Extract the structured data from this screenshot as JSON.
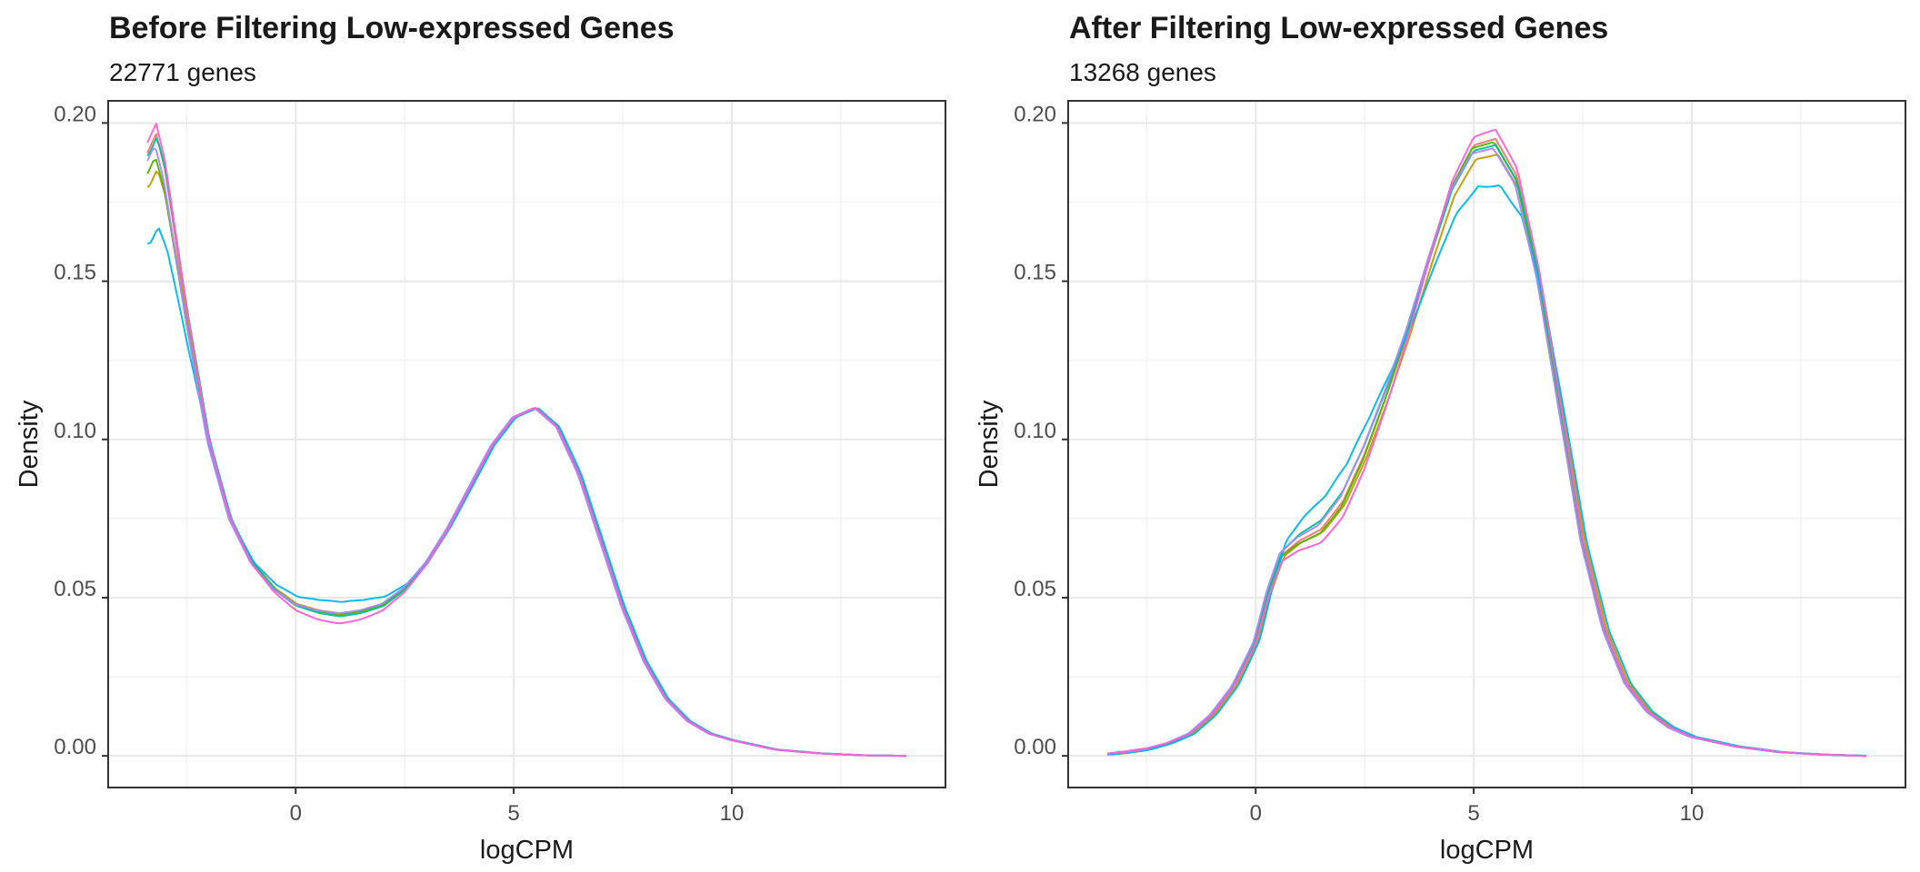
{
  "colors": {
    "grid_major": "#e8e8e8",
    "grid_minor": "#f3f3f3",
    "panel_border": "#333333",
    "series": [
      "#F8766D",
      "#C49A00",
      "#53B400",
      "#00C094",
      "#00B6EB",
      "#A58AFF",
      "#FB61D7"
    ]
  },
  "chart_data": [
    {
      "type": "line",
      "title": "Before Filtering Low-expressed Genes",
      "subtitle": "22771 genes",
      "xlabel": "logCPM",
      "ylabel": "Density",
      "xlim": [
        -4.3,
        14.9
      ],
      "ylim": [
        -0.01,
        0.207
      ],
      "x_ticks": [
        0,
        5,
        10
      ],
      "y_ticks": [
        0.0,
        0.05,
        0.1,
        0.15,
        0.2
      ],
      "x_tick_labels": [
        "0",
        "5",
        "10"
      ],
      "y_tick_labels": [
        "0.00",
        "0.05",
        "0.10",
        "0.15",
        "0.20"
      ],
      "grid": true,
      "legend": "none",
      "curve_shape": {
        "x": [
          -3.4,
          -3.2,
          -3.0,
          -2.5,
          -2.0,
          -1.5,
          -1.0,
          -0.5,
          0.0,
          0.5,
          1.0,
          1.5,
          2.0,
          2.5,
          3.0,
          3.5,
          4.0,
          4.5,
          5.0,
          5.5,
          6.0,
          6.5,
          7.0,
          7.5,
          8.0,
          8.5,
          9.0,
          9.5,
          10.0,
          11.0,
          12.0,
          13.0,
          14.0
        ],
        "y": [
          0.19,
          0.196,
          0.185,
          0.14,
          0.1,
          0.075,
          0.061,
          0.053,
          0.048,
          0.046,
          0.045,
          0.046,
          0.048,
          0.053,
          0.061,
          0.072,
          0.085,
          0.098,
          0.107,
          0.11,
          0.104,
          0.089,
          0.068,
          0.047,
          0.03,
          0.018,
          0.011,
          0.007,
          0.005,
          0.002,
          0.0008,
          0.0002,
          0.0
        ]
      },
      "series": [
        {
          "color": "#F8766D",
          "peak": 1.003,
          "left_edge": 1.0,
          "mid": 1.0,
          "shift": 0.0
        },
        {
          "color": "#C49A00",
          "peak": 0.985,
          "left_edge": 0.96,
          "mid": 1.0,
          "shift": 0.03
        },
        {
          "color": "#53B400",
          "peak": 0.995,
          "left_edge": 0.97,
          "mid": 0.99,
          "shift": -0.02
        },
        {
          "color": "#00C094",
          "peak": 1.008,
          "left_edge": 0.99,
          "mid": 0.98,
          "shift": 0.02
        },
        {
          "color": "#00B6EB",
          "peak": 0.93,
          "left_edge": 0.92,
          "mid": 1.08,
          "shift": 0.05
        },
        {
          "color": "#A58AFF",
          "peak": 0.99,
          "left_edge": 0.995,
          "mid": 1.0,
          "shift": -0.03
        },
        {
          "color": "#FB61D7",
          "peak": 1.01,
          "left_edge": 1.01,
          "mid": 0.93,
          "shift": 0.0
        }
      ]
    },
    {
      "type": "line",
      "title": "After Filtering Low-expressed Genes",
      "subtitle": "13268 genes",
      "xlabel": "logCPM",
      "ylabel": "Density",
      "xlim": [
        -4.3,
        14.9
      ],
      "ylim": [
        -0.01,
        0.207
      ],
      "x_ticks": [
        0,
        5,
        10
      ],
      "y_ticks": [
        0.0,
        0.05,
        0.1,
        0.15,
        0.2
      ],
      "x_tick_labels": [
        "0",
        "5",
        "10"
      ],
      "y_tick_labels": [
        "0.00",
        "0.05",
        "0.10",
        "0.15",
        "0.20"
      ],
      "grid": true,
      "legend": "none",
      "curve_shape": {
        "x": [
          -3.4,
          -3.0,
          -2.5,
          -2.0,
          -1.5,
          -1.0,
          -0.5,
          0.0,
          0.3,
          0.6,
          1.0,
          1.5,
          2.0,
          2.5,
          3.0,
          3.5,
          4.0,
          4.5,
          5.0,
          5.5,
          6.0,
          6.5,
          7.0,
          7.5,
          8.0,
          8.5,
          9.0,
          9.5,
          10.0,
          11.0,
          12.0,
          13.0,
          14.0
        ],
        "y": [
          0.0005,
          0.001,
          0.002,
          0.004,
          0.007,
          0.013,
          0.022,
          0.036,
          0.052,
          0.064,
          0.069,
          0.073,
          0.082,
          0.097,
          0.115,
          0.135,
          0.158,
          0.18,
          0.193,
          0.195,
          0.183,
          0.152,
          0.11,
          0.068,
          0.04,
          0.023,
          0.014,
          0.009,
          0.006,
          0.003,
          0.0012,
          0.0004,
          0.0
        ]
      },
      "series": [
        {
          "color": "#F8766D",
          "peak": 1.0,
          "left_edge": 1.0,
          "mid": 0.98,
          "shift": 0.0
        },
        {
          "color": "#C49A00",
          "peak": 0.975,
          "left_edge": 0.85,
          "mid": 0.97,
          "shift": 0.05
        },
        {
          "color": "#53B400",
          "peak": 0.995,
          "left_edge": 0.8,
          "mid": 0.96,
          "shift": -0.03
        },
        {
          "color": "#00C094",
          "peak": 0.99,
          "left_edge": 0.9,
          "mid": 1.02,
          "shift": 0.0
        },
        {
          "color": "#00B6EB",
          "peak": 0.925,
          "left_edge": 1.05,
          "mid": 1.13,
          "shift": 0.1
        },
        {
          "color": "#A58AFF",
          "peak": 0.985,
          "left_edge": 1.1,
          "mid": 1.0,
          "shift": -0.05
        },
        {
          "color": "#FB61D7",
          "peak": 1.015,
          "left_edge": 1.5,
          "mid": 0.92,
          "shift": 0.0
        }
      ]
    }
  ]
}
